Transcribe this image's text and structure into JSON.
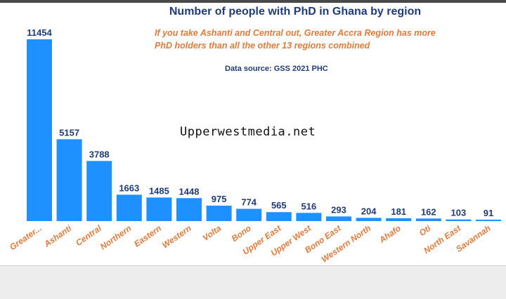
{
  "chart_data": {
    "type": "bar",
    "title": "Number of people with PhD in Ghana by region",
    "subtitle": "If you take Ashanti and Central out, Greater Accra Region has more PhD holders than all the other 13 regions combined",
    "source": "Data source: GSS 2021 PHC",
    "categories": [
      "Greater...",
      "Ashanti",
      "Central",
      "Northern",
      "Eastern",
      "Western",
      "Volta",
      "Bono",
      "Upper East",
      "Upper West",
      "Bono East",
      "Western North",
      "Ahafo",
      "Oti",
      "North East",
      "Savannah"
    ],
    "values": [
      11454,
      5157,
      3788,
      1663,
      1485,
      1448,
      975,
      774,
      565,
      516,
      293,
      204,
      181,
      162,
      103,
      91
    ],
    "ylim": [
      0,
      11454
    ],
    "bar_color": "#1e90ff",
    "label_color": "#1f3b78",
    "category_label_color": "#e07a3a",
    "grid": false
  },
  "watermark": "Upperwestmedia.net"
}
